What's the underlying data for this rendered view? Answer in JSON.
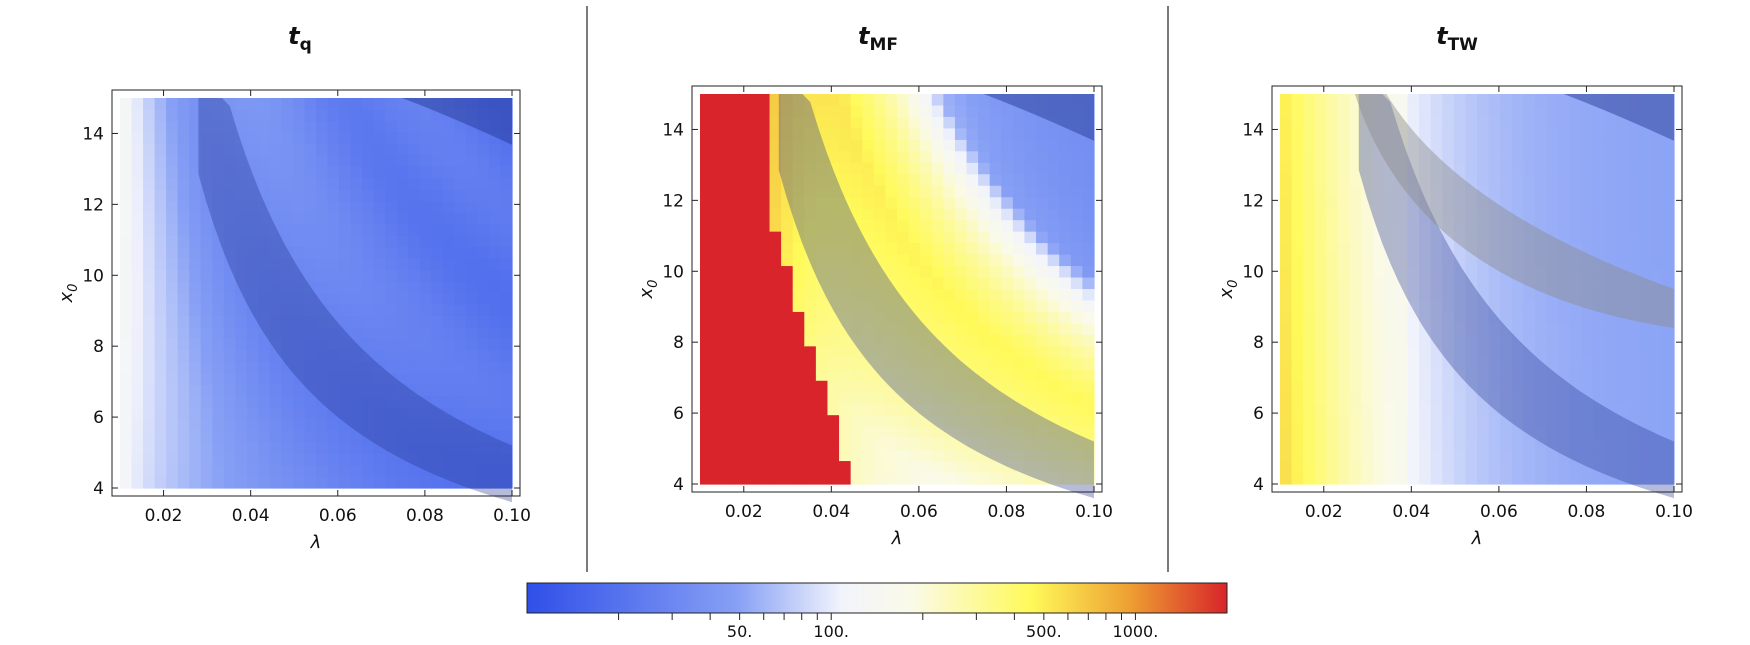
{
  "chart_data": [
    {
      "type": "heatmap",
      "title_main": "t",
      "title_sub": "q",
      "xlabel": "λ",
      "ylabel": "x",
      "ylabel_sub": "0",
      "xlim": [
        0.01,
        0.1
      ],
      "ylim": [
        4,
        15
      ],
      "xticks": [
        "0.02",
        "0.04",
        "0.06",
        "0.08",
        "0.10"
      ],
      "yticks": [
        "4",
        "6",
        "8",
        "10",
        "12",
        "14"
      ],
      "value_range_approx": [
        12,
        110
      ],
      "band_overlay": true
    },
    {
      "type": "heatmap",
      "title_main": "t",
      "title_sub": "MF",
      "xlabel": "λ",
      "ylabel": "x",
      "ylabel_sub": "0",
      "xlim": [
        0.01,
        0.1
      ],
      "ylim": [
        4,
        15
      ],
      "xticks": [
        "0.02",
        "0.04",
        "0.06",
        "0.08",
        "0.10"
      ],
      "yticks": [
        "4",
        "6",
        "8",
        "10",
        "12",
        "14"
      ],
      "value_range_approx": [
        20,
        2000
      ],
      "band_overlay": true
    },
    {
      "type": "heatmap",
      "title_main": "t",
      "title_sub": "TW",
      "xlabel": "λ",
      "ylabel": "x",
      "ylabel_sub": "0",
      "xlim": [
        0.01,
        0.1
      ],
      "ylim": [
        4,
        15
      ],
      "xticks": [
        "0.02",
        "0.04",
        "0.06",
        "0.08",
        "0.10"
      ],
      "yticks": [
        "4",
        "6",
        "8",
        "10",
        "12",
        "14"
      ],
      "value_range_approx": [
        20,
        700
      ],
      "band_overlay": true
    }
  ],
  "colorbar": {
    "scale": "log",
    "range": [
      10,
      2000
    ],
    "labels": [
      "50.",
      "100.",
      "500.",
      "1000."
    ],
    "colors": [
      "#2f4fe8",
      "#ffffff",
      "#ffff66",
      "#d8242a"
    ]
  }
}
